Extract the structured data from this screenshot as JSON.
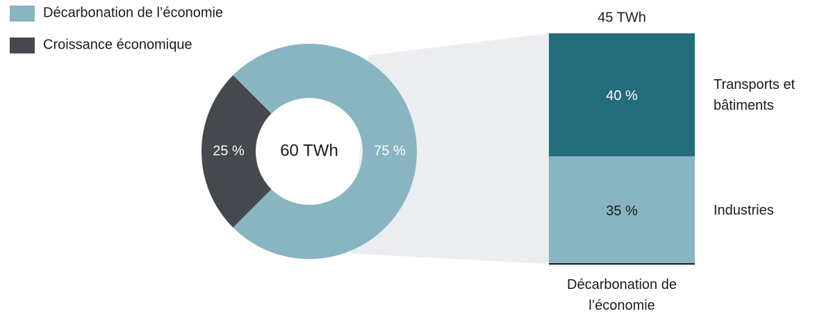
{
  "chart_data": [
    {
      "type": "donut",
      "categories": [
        "Décarbonation de l’économie",
        "Croissance économique"
      ],
      "values": [
        75,
        25
      ],
      "value_labels": [
        "75 %",
        "25 %"
      ],
      "colors": [
        "#88b5c1",
        "#45484c"
      ],
      "center_label": "60 TWh",
      "legend": "top-left"
    },
    {
      "type": "stacked-bar",
      "title": "45 TWh",
      "categories": [
        "Décarbonation de l’économie"
      ],
      "series": [
        {
          "name": "Industries",
          "color": "#88b5c1",
          "values": [
            35
          ],
          "value_labels": [
            "35 %"
          ]
        },
        {
          "name": "Transports et bâtiments",
          "color": "#246b7b",
          "values": [
            40
          ],
          "value_labels": [
            "40 %"
          ]
        }
      ]
    }
  ]
}
